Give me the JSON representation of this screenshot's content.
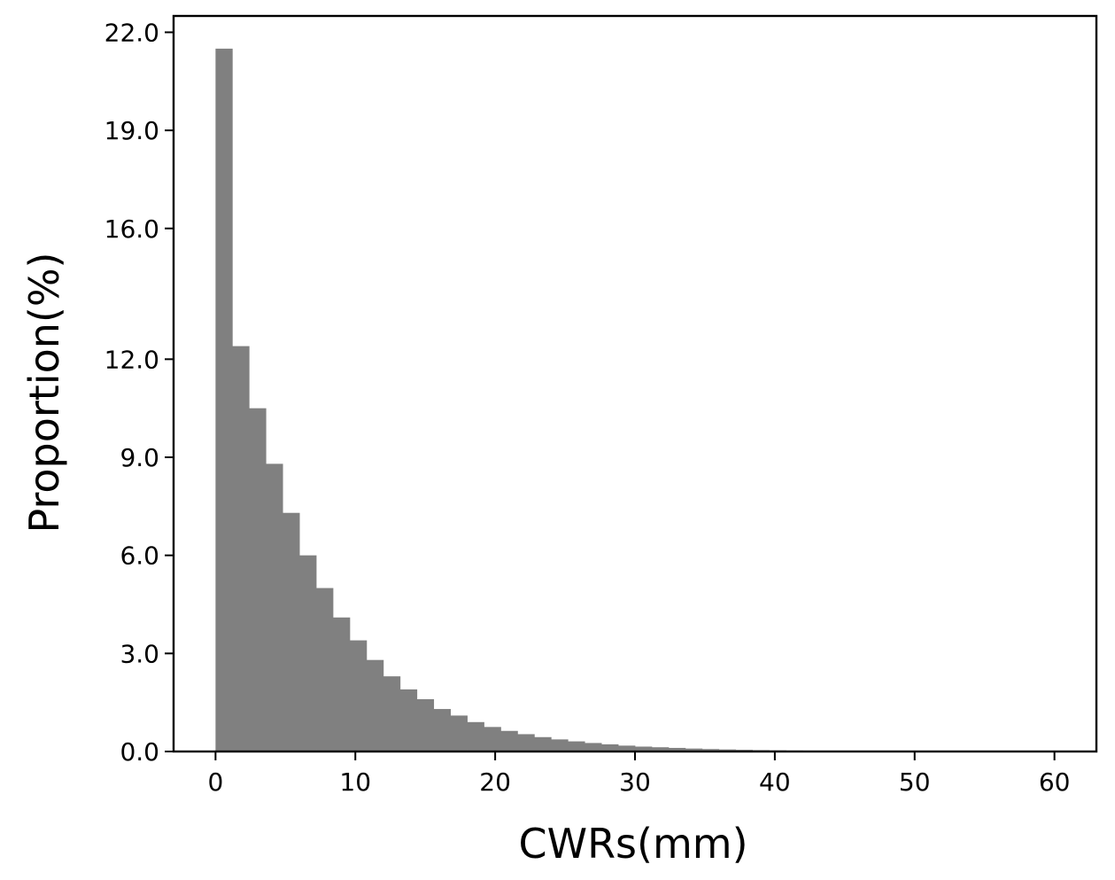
{
  "chart_data": {
    "type": "bar",
    "xlabel": "CWRs(mm)",
    "ylabel": "Proportion(%)",
    "xlim": [
      -3,
      63
    ],
    "ylim": [
      0,
      22.5
    ],
    "x_ticks": [
      0,
      10,
      20,
      30,
      40,
      50,
      60
    ],
    "x_tick_labels": [
      "0",
      "10",
      "20",
      "30",
      "40",
      "50",
      "60"
    ],
    "y_ticks": [
      0,
      3,
      6,
      9,
      12,
      16,
      19,
      22
    ],
    "y_tick_labels": [
      "0.0",
      "3.0",
      "6.0",
      "9.0",
      "12.0",
      "16.0",
      "19.0",
      "22.0"
    ],
    "bin_width": 1.2,
    "bin_start": 0,
    "values": [
      21.5,
      12.4,
      10.5,
      8.8,
      7.3,
      6.0,
      5.0,
      4.1,
      3.4,
      2.8,
      2.3,
      1.9,
      1.6,
      1.3,
      1.1,
      0.9,
      0.75,
      0.63,
      0.53,
      0.44,
      0.37,
      0.31,
      0.26,
      0.22,
      0.18,
      0.15,
      0.13,
      0.11,
      0.09,
      0.075,
      0.063,
      0.052,
      0.043,
      0.036,
      0.03,
      0.025,
      0.021,
      0.017,
      0.014,
      0.012,
      0.01,
      0.008,
      0.007,
      0.006,
      0.005,
      0.004,
      0.003,
      0.003,
      0.002,
      0.002
    ],
    "bar_color": "#808080",
    "grid": false,
    "legend": "none"
  }
}
